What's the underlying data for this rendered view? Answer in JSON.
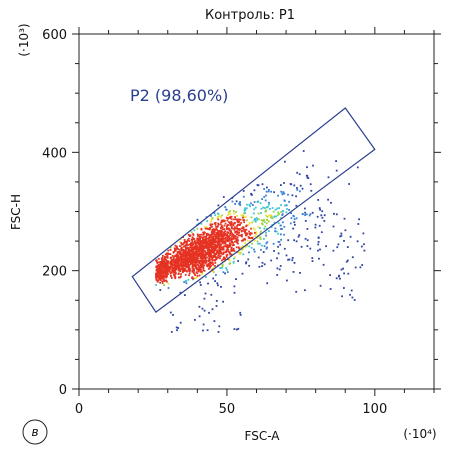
{
  "chart_data": {
    "type": "scatter",
    "title": "Контроль: P1",
    "xlabel": "FSC-A",
    "ylabel": "FSC-H",
    "x_multiplier": "(·10⁴)",
    "y_multiplier": "(·10³)",
    "xlim": [
      0,
      120
    ],
    "ylim": [
      0,
      600
    ],
    "x_ticks": [
      "0",
      "50",
      "100"
    ],
    "y_ticks": [
      "0",
      "200",
      "400",
      "600"
    ],
    "grid": false,
    "density_colored": true,
    "gate": {
      "name": "P2 (98,60%)",
      "polygon": [
        [
          18,
          190
        ],
        [
          26,
          130
        ],
        [
          100,
          405
        ],
        [
          90,
          475
        ]
      ]
    },
    "distribution": {
      "x_range": [
        26,
        95
      ],
      "y_range": [
        140,
        480
      ],
      "peak": {
        "x": 42,
        "y": 235
      },
      "outliers_below_gate": {
        "x_range": [
          30,
          97
        ],
        "y_range": [
          85,
          350
        ]
      }
    },
    "panel_label": "в"
  },
  "colors": {
    "sparse": "#3145a3",
    "low": "#3b7fd6",
    "mid": "#3ec6d2",
    "high": "#9ad23a",
    "dense": "#f0e030",
    "peak": "#e53323",
    "gate_stroke": "#2b3f8f",
    "axis": "#222222"
  }
}
